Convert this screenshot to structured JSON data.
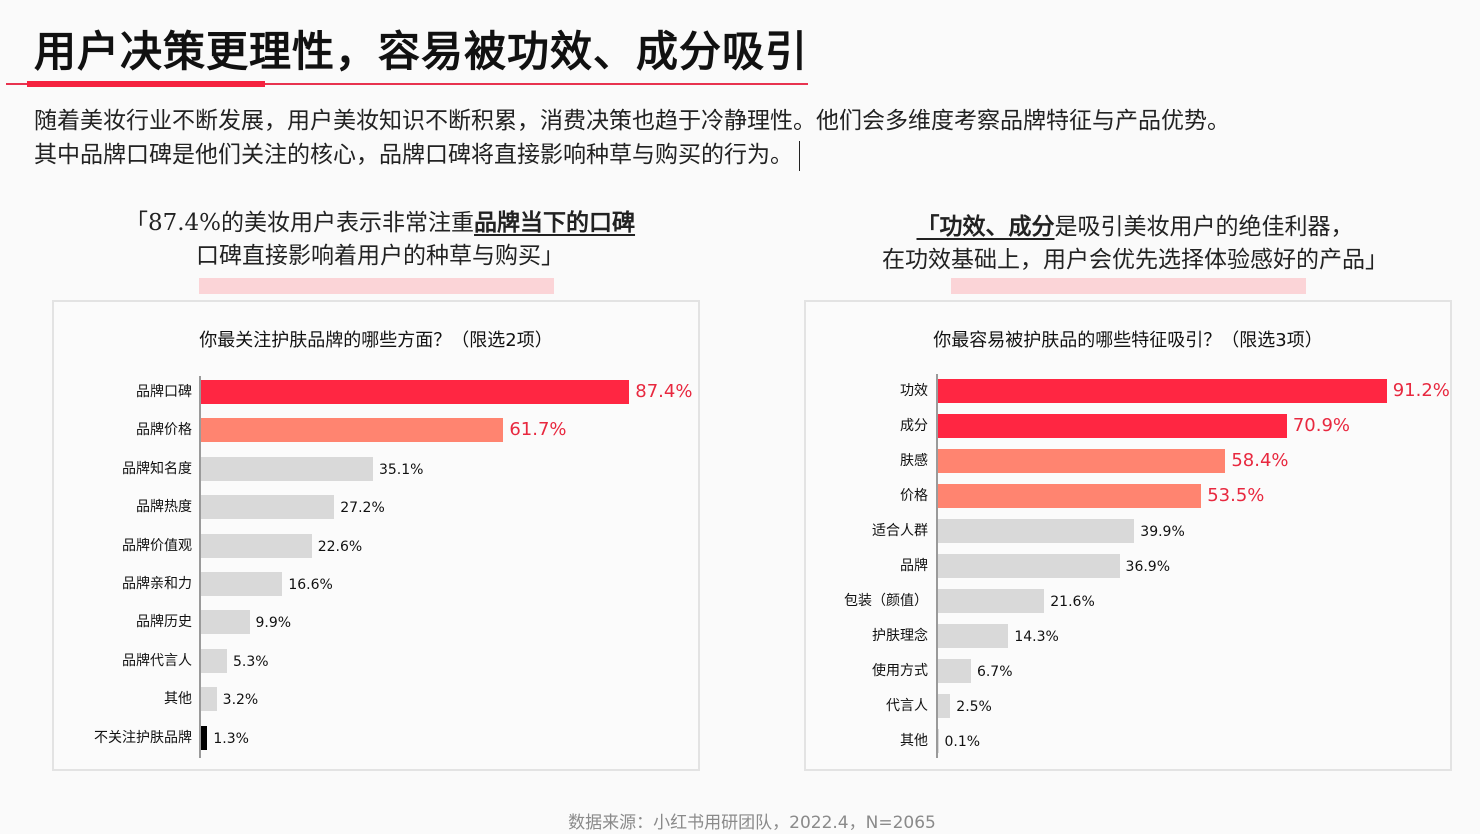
{
  "header": {
    "title": "用户决策更理性，容易被功效、成分吸引"
  },
  "intro": {
    "line1": "随着美妆行业不断发展，用户美妆知识不断积累，消费决策也趋于冷静理性。他们会多维度考察品牌特征与产品优势。",
    "line2": "其中品牌口碑是他们关注的核心，品牌口碑将直接影响种草与购买的行为。"
  },
  "quotes": {
    "left": {
      "line1_plain": "「87.4%的美妆用户表示非常注重",
      "line1_emph": "品牌当下的口碑",
      "line2": "口碑直接影响着用户的种草与购买」"
    },
    "right": {
      "line1_emph": "「功效、成分",
      "line1_plain": "是吸引美妆用户的绝佳利器，",
      "line2": "在功效基础上，用户会优先选择体验感好的产品」"
    }
  },
  "colors": {
    "accent_red": "#ff2642",
    "accent_salmon": "#ff8470",
    "neutral_gray": "#d9d9d9",
    "black": "#000000",
    "highlight_text": "#e8283f"
  },
  "chart_data": [
    {
      "type": "bar",
      "orientation": "horizontal",
      "title": "你最关注护肤品牌的哪些方面？（限选2项）",
      "categories": [
        "品牌口碑",
        "品牌价格",
        "品牌知名度",
        "品牌热度",
        "品牌价值观",
        "品牌亲和力",
        "品牌历史",
        "品牌代言人",
        "其他",
        "不关注护肤品牌"
      ],
      "values": [
        87.4,
        61.7,
        35.1,
        27.2,
        22.6,
        16.6,
        9.9,
        5.3,
        3.2,
        1.3
      ],
      "labels": [
        "87.4%",
        "61.7%",
        "35.1%",
        "27.2%",
        "22.6%",
        "16.6%",
        "9.9%",
        "5.3%",
        "3.2%",
        "1.3%"
      ],
      "bar_colors": [
        "#ff2642",
        "#ff8470",
        "#d9d9d9",
        "#d9d9d9",
        "#d9d9d9",
        "#d9d9d9",
        "#d9d9d9",
        "#d9d9d9",
        "#d9d9d9",
        "#000000"
      ],
      "highlight": [
        true,
        true,
        false,
        false,
        false,
        false,
        false,
        false,
        false,
        false
      ],
      "unit": "%",
      "xlim": [
        0,
        100
      ],
      "grid": false,
      "legend": "none"
    },
    {
      "type": "bar",
      "orientation": "horizontal",
      "title": "你最容易被护肤品的哪些特征吸引？（限选3项）",
      "categories": [
        "功效",
        "成分",
        "肤感",
        "价格",
        "适合人群",
        "品牌",
        "包装（颜值）",
        "护肤理念",
        "使用方式",
        "代言人",
        "其他"
      ],
      "values": [
        91.2,
        70.9,
        58.4,
        53.5,
        39.9,
        36.9,
        21.6,
        14.3,
        6.7,
        2.5,
        0.1
      ],
      "labels": [
        "91.2%",
        "70.9%",
        "58.4%",
        "53.5%",
        "39.9%",
        "36.9%",
        "21.6%",
        "14.3%",
        "6.7%",
        "2.5%",
        "0.1%"
      ],
      "bar_colors": [
        "#ff2642",
        "#ff2642",
        "#ff8470",
        "#ff8470",
        "#d9d9d9",
        "#d9d9d9",
        "#d9d9d9",
        "#d9d9d9",
        "#d9d9d9",
        "#d9d9d9",
        "#d9d9d9"
      ],
      "highlight": [
        true,
        true,
        true,
        true,
        false,
        false,
        false,
        false,
        false,
        false,
        false
      ],
      "unit": "%",
      "xlim": [
        0,
        100
      ],
      "grid": false,
      "legend": "none"
    }
  ],
  "footer": {
    "source": "数据来源：小红书用研团队，2022.4，N=2065"
  }
}
